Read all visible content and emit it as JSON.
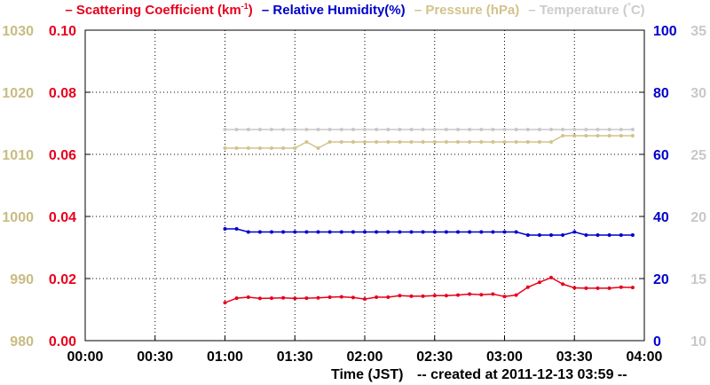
{
  "chart_data": {
    "type": "line",
    "legend": [
      {
        "label": "– Scattering Coefficient (km",
        "sup": "-1",
        "tail": ")",
        "color": "#e8001c"
      },
      {
        "label": "– Relative Humidity(%)",
        "color": "#0000cc"
      },
      {
        "label": "– Pressure (hPa)",
        "color": "#d2c38a"
      },
      {
        "label": "– Temperature (",
        "deg": "°",
        "tail": "C)",
        "color": "#cccccc"
      }
    ],
    "xlabel": "Time (JST)",
    "created_note": "-- created at 2011-12-13 03:59 --",
    "x_ticks": [
      "00:00",
      "00:30",
      "01:00",
      "01:30",
      "02:00",
      "02:30",
      "03:00",
      "03:30",
      "04:00"
    ],
    "x_range_minutes": [
      0,
      240
    ],
    "grid": true,
    "axes": {
      "pressure": {
        "side": "left-outer",
        "color": "#c8bc82",
        "ylim": [
          980,
          1030
        ],
        "ticks": [
          "980",
          "990",
          "1000",
          "1010",
          "1020",
          "1030"
        ]
      },
      "scattering": {
        "side": "left-inner",
        "color": "#e8001c",
        "ylim": [
          0,
          0.1
        ],
        "ticks": [
          "0.00",
          "0.02",
          "0.04",
          "0.06",
          "0.08",
          "0.10"
        ]
      },
      "humidity": {
        "side": "right-inner",
        "color": "#0000cc",
        "ylim": [
          0,
          100
        ],
        "ticks": [
          "0",
          "20",
          "40",
          "60",
          "80",
          "100"
        ]
      },
      "temperature": {
        "side": "right-outer",
        "color": "#c8c8c8",
        "ylim": [
          10,
          35
        ],
        "ticks": [
          "10",
          "15",
          "20",
          "25",
          "30",
          "35"
        ]
      }
    },
    "series": [
      {
        "name": "Scattering Coefficient",
        "axis": "scattering",
        "color": "#e8001c",
        "x_minutes": [
          60,
          65,
          70,
          75,
          80,
          85,
          90,
          95,
          100,
          105,
          110,
          115,
          120,
          125,
          130,
          135,
          140,
          145,
          150,
          155,
          160,
          165,
          170,
          175,
          180,
          185,
          190,
          195,
          200,
          205,
          210,
          215,
          220,
          225,
          230,
          235
        ],
        "values": [
          0.0122,
          0.0137,
          0.014,
          0.0136,
          0.0137,
          0.0138,
          0.0136,
          0.0137,
          0.0138,
          0.014,
          0.0141,
          0.0139,
          0.0134,
          0.014,
          0.014,
          0.0145,
          0.0143,
          0.0143,
          0.0145,
          0.0145,
          0.0147,
          0.015,
          0.0148,
          0.015,
          0.0142,
          0.0147,
          0.0172,
          0.0188,
          0.0203,
          0.0182,
          0.017,
          0.0169,
          0.0169,
          0.0169,
          0.0172,
          0.0171
        ]
      },
      {
        "name": "Relative Humidity",
        "axis": "humidity",
        "color": "#0000cc",
        "x_minutes": [
          60,
          65,
          70,
          75,
          80,
          85,
          90,
          95,
          100,
          105,
          110,
          115,
          120,
          125,
          130,
          135,
          140,
          145,
          150,
          155,
          160,
          165,
          170,
          175,
          180,
          185,
          190,
          195,
          200,
          205,
          210,
          215,
          220,
          225,
          230,
          235
        ],
        "values": [
          36,
          36,
          35,
          35,
          35,
          35,
          35,
          35,
          35,
          35,
          35,
          35,
          35,
          35,
          35,
          35,
          35,
          35,
          35,
          35,
          35,
          35,
          35,
          35,
          35,
          35,
          34,
          34,
          34,
          34,
          35,
          34,
          34,
          34,
          34,
          34
        ]
      },
      {
        "name": "Pressure",
        "axis": "pressure",
        "color": "#d2c38a",
        "x_minutes": [
          60,
          65,
          70,
          75,
          80,
          85,
          90,
          95,
          100,
          105,
          110,
          115,
          120,
          125,
          130,
          135,
          140,
          145,
          150,
          155,
          160,
          165,
          170,
          175,
          180,
          185,
          190,
          195,
          200,
          205,
          210,
          215,
          220,
          225,
          230,
          235
        ],
        "values": [
          1011,
          1011,
          1011,
          1011,
          1011,
          1011,
          1011,
          1012,
          1011,
          1012,
          1012,
          1012,
          1012,
          1012,
          1012,
          1012,
          1012,
          1012,
          1012,
          1012,
          1012,
          1012,
          1012,
          1012,
          1012,
          1012,
          1012,
          1012,
          1012,
          1013,
          1013,
          1013,
          1013,
          1013,
          1013,
          1013
        ]
      },
      {
        "name": "Temperature",
        "axis": "temperature",
        "color": "#c8c8c8",
        "x_minutes": [
          60,
          65,
          70,
          75,
          80,
          85,
          90,
          95,
          100,
          105,
          110,
          115,
          120,
          125,
          130,
          135,
          140,
          145,
          150,
          155,
          160,
          165,
          170,
          175,
          180,
          185,
          190,
          195,
          200,
          205,
          210,
          215,
          220,
          225,
          230,
          235
        ],
        "values": [
          27,
          27,
          27,
          27,
          27,
          27,
          27,
          27,
          27,
          27,
          27,
          27,
          27,
          27,
          27,
          27,
          27,
          27,
          27,
          27,
          27,
          27,
          27,
          27,
          27,
          27,
          27,
          27,
          27,
          27,
          27,
          27,
          27,
          27,
          27,
          27
        ]
      }
    ]
  }
}
